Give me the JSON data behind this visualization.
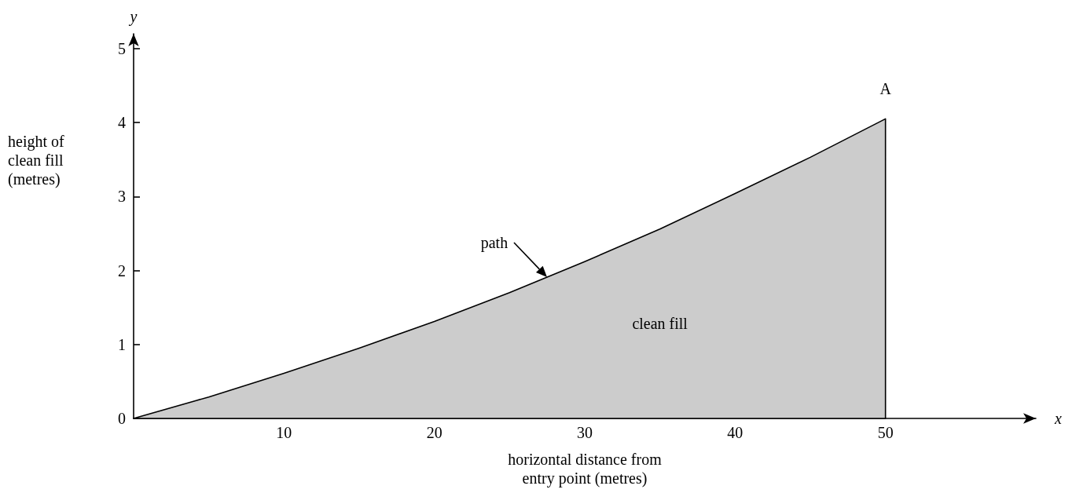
{
  "chart_data": {
    "type": "area",
    "xlabel": "horizontal distance from entry point (metres)",
    "ylabel": "height of clean fill (metres)",
    "x": [
      0,
      5,
      10,
      15,
      20,
      25,
      30,
      35,
      40,
      45,
      50
    ],
    "values": [
      0,
      0.29,
      0.61,
      0.95,
      1.31,
      1.7,
      2.12,
      2.56,
      3.04,
      3.53,
      4.05
    ],
    "color": "#cccccc",
    "xlim": [
      0,
      60
    ],
    "xticks": [
      10,
      20,
      30,
      40,
      50
    ],
    "ylim": [
      0,
      5.2
    ],
    "yticks": [
      0,
      1,
      2,
      3,
      4,
      5
    ],
    "grid": false,
    "annotations": [
      "y",
      "x",
      "clean fill",
      "path",
      {
        "text": "A",
        "x": 50,
        "y": 4.05
      }
    ]
  }
}
